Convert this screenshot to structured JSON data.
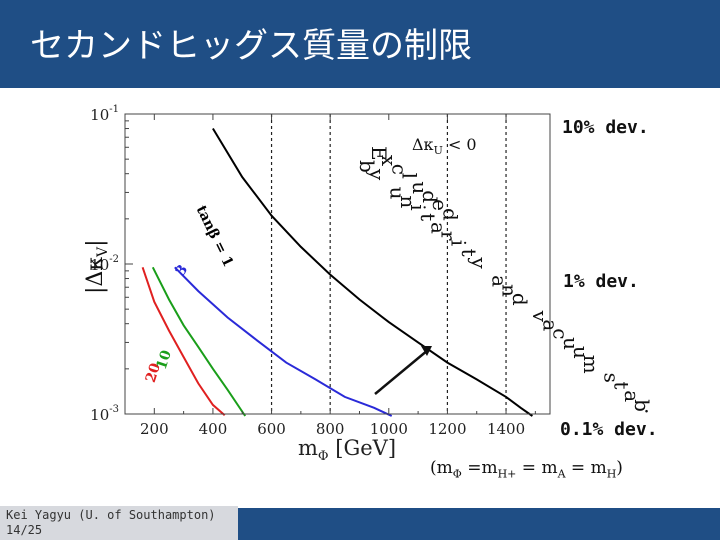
{
  "slide": {
    "title": "セカンドヒッグス質量の制限",
    "footer_author": "Kei Yagyu (U. of Southampton)",
    "footer_page": "14/25",
    "dev_labels": [
      "10% dev.",
      "1% dev.",
      "0.1% dev."
    ],
    "relation": {
      "prefix": "(m",
      "sub_phi": "Φ",
      "eq1": " =m",
      "sub_hp": "H+",
      "eq2": " = m",
      "sub_a": "A",
      "eq3": " = m",
      "sub_h": "H",
      "suffix": ")"
    }
  },
  "colors": {
    "title_bar": "#1f4e85",
    "curve_red": "#e02020",
    "curve_green": "#1a9e1a",
    "curve_blue": "#2a2ad8",
    "curve_black": "#000000"
  },
  "chart_data": {
    "type": "line",
    "xlabel": "m_Φ [GeV]",
    "ylabel": "|Δκ_V|",
    "x_scale": "linear",
    "y_scale": "log",
    "xlim": [
      100,
      1550
    ],
    "ylim": [
      0.001,
      0.1
    ],
    "x_ticks": [
      200,
      400,
      600,
      800,
      1000,
      1200,
      1400
    ],
    "x_tick_labels": [
      "200",
      "400",
      "600",
      "800",
      "1000",
      "1200",
      "1400"
    ],
    "y_tick_labels": [
      {
        "base": "10",
        "exp": "-1"
      },
      {
        "base": "10",
        "exp": "-2"
      },
      {
        "base": "10",
        "exp": "-3"
      }
    ],
    "vertical_dashed_lines": [
      600,
      800,
      1200,
      1400
    ],
    "series": [
      {
        "name": "20",
        "color": "#e02020",
        "x": [
          160,
          200,
          250,
          300,
          350,
          400,
          440
        ],
        "y": [
          0.0095,
          0.0056,
          0.0036,
          0.0024,
          0.0016,
          0.00115,
          0.00098
        ]
      },
      {
        "name": "10",
        "color": "#1a9e1a",
        "x": [
          195,
          250,
          300,
          350,
          400,
          450,
          510
        ],
        "y": [
          0.0095,
          0.0058,
          0.0039,
          0.0028,
          0.002,
          0.00145,
          0.00097
        ]
      },
      {
        "name": "3",
        "color": "#2a2ad8",
        "x": [
          270,
          350,
          450,
          550,
          650,
          750,
          850,
          950,
          1010
        ],
        "y": [
          0.0095,
          0.0066,
          0.0044,
          0.0031,
          0.0022,
          0.0017,
          0.0013,
          0.0011,
          0.00097
        ]
      },
      {
        "name": "tanβ = 1",
        "color": "#000000",
        "x": [
          400,
          500,
          600,
          700,
          800,
          900,
          1000,
          1100,
          1200,
          1300,
          1400,
          1450,
          1490
        ],
        "y": [
          0.08,
          0.038,
          0.021,
          0.013,
          0.0085,
          0.0058,
          0.0041,
          0.003,
          0.0022,
          0.0017,
          0.0013,
          0.0011,
          0.00097
        ]
      }
    ],
    "annotations": {
      "kappa_u": {
        "symbol": "Δκ",
        "sub": "U",
        "rel": "< 0"
      },
      "excluded": "Excluded by unitarity and vacuum stab."
    }
  }
}
